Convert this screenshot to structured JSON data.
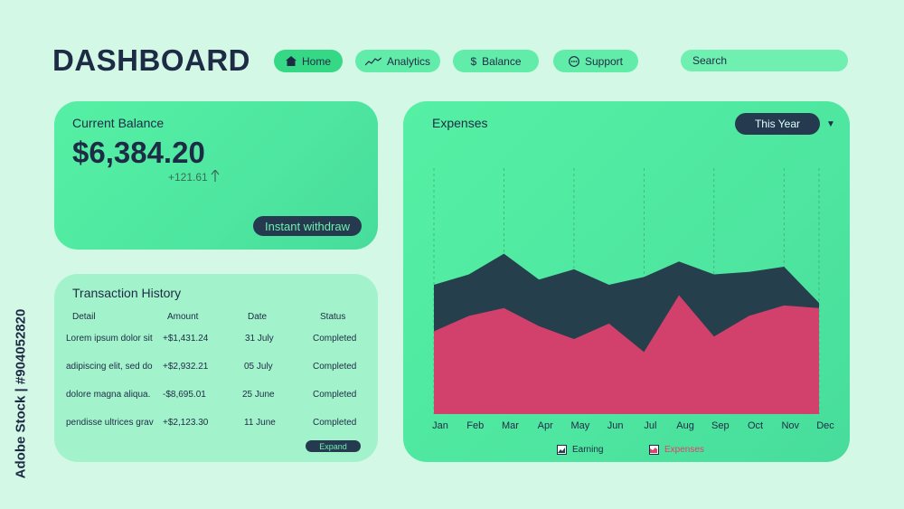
{
  "header": {
    "title": "DASHBOARD"
  },
  "nav": {
    "items": [
      {
        "label": "Home",
        "icon": "home-icon",
        "active": true
      },
      {
        "label": "Analytics",
        "icon": "trend-line-icon",
        "active": false
      },
      {
        "label": "Balance",
        "icon": "dollar-icon",
        "active": false
      },
      {
        "label": "Support",
        "icon": "chat-dots-icon",
        "active": false
      }
    ],
    "search_placeholder": "Search"
  },
  "balance": {
    "label": "Current Balance",
    "value": "$6,384.20",
    "change": "+121.61",
    "withdraw_label": "Instant withdraw"
  },
  "transactions": {
    "title": "Transaction History",
    "columns": [
      "Detail",
      "Amount",
      "Date",
      "Status"
    ],
    "rows": [
      {
        "detail": "Lorem ipsum dolor sit",
        "amount": "+$1,431.24",
        "date": "31 July",
        "status": "Completed"
      },
      {
        "detail": "adipiscing elit, sed do",
        "amount": "+$2,932.21",
        "date": "05 July",
        "status": "Completed"
      },
      {
        "detail": "dolore magna aliqua.",
        "amount": "-$8,695.01",
        "date": "25 June",
        "status": "Completed"
      },
      {
        "detail": "pendisse ultrices grav",
        "amount": "+$2,123.30",
        "date": "11 June",
        "status": "Completed"
      }
    ],
    "expand_label": "Expand"
  },
  "expenses": {
    "title": "Expenses",
    "period_label": "This Year"
  },
  "chart_data": {
    "type": "area",
    "categories": [
      "Jan",
      "Feb",
      "Mar",
      "Apr",
      "May",
      "Jun",
      "Jul",
      "Aug",
      "Sep",
      "Oct",
      "Nov",
      "Dec"
    ],
    "series": [
      {
        "name": "Earning",
        "values": [
          50,
          54,
          62,
          52,
          56,
          50,
          53,
          59,
          54,
          55,
          57,
          43
        ],
        "color": "#263f4c"
      },
      {
        "name": "Expenses",
        "values": [
          32,
          38,
          41,
          34,
          29,
          35,
          24,
          46,
          30,
          38,
          42,
          41
        ],
        "color": "#e0416e"
      }
    ],
    "ylim": [
      0,
      100
    ],
    "grid": "vertical-dashed",
    "legend": "bottom-center"
  },
  "colors": {
    "background": "#d3f8e6",
    "card": "#52eca2",
    "dark": "#263a4f",
    "earning": "#263f4c",
    "expenses": "#e0416e"
  },
  "watermark": "Adobe Stock | #904052820"
}
